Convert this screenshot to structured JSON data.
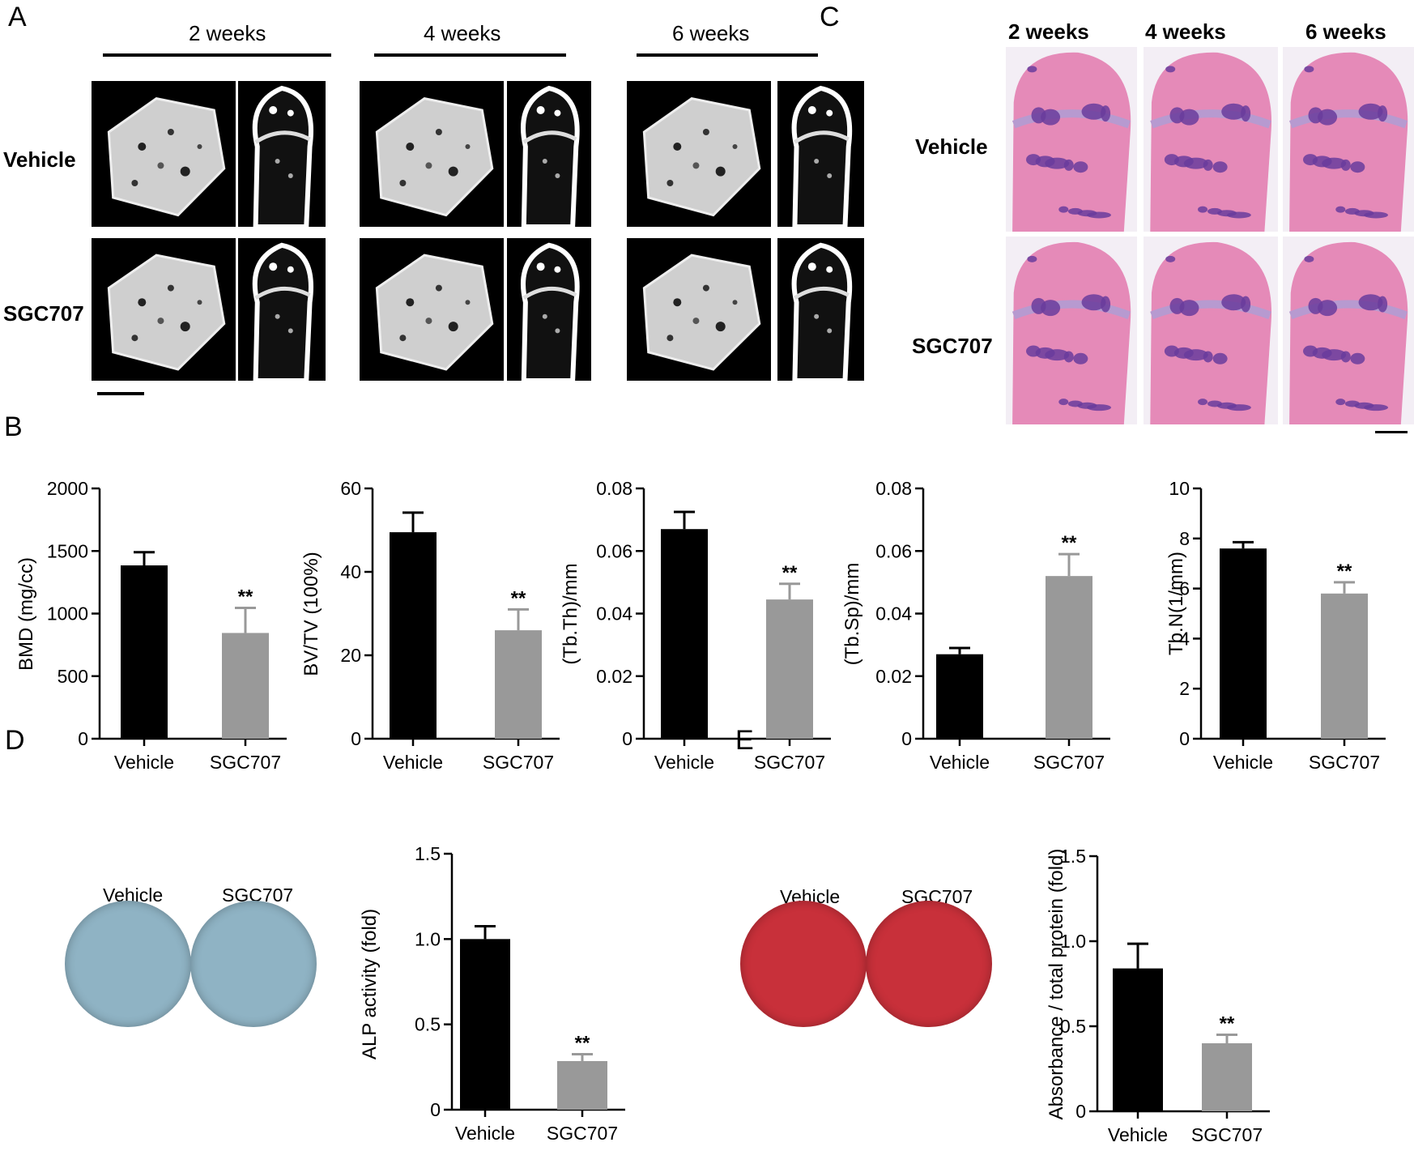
{
  "panels": {
    "A": {
      "letter": "A",
      "timepoints": [
        "2 weeks",
        "4 weeks",
        "6 weeks"
      ],
      "rows": [
        "Vehicle",
        "SGC707"
      ]
    },
    "C": {
      "letter": "C",
      "timepoints": [
        "2 weeks",
        "4 weeks",
        "6 weeks"
      ],
      "rows": [
        "Vehicle",
        "SGC707"
      ]
    },
    "B": {
      "letter": "B"
    },
    "D": {
      "letter": "D",
      "plate_labels": [
        "Vehicle",
        "SGC707"
      ]
    },
    "E": {
      "letter": "E",
      "plate_labels": [
        "Vehicle",
        "SGC707"
      ]
    }
  },
  "colors": {
    "vehicle_bar": "#000000",
    "sgc707_bar": "#999999",
    "alp_stain": "#8fb3c4",
    "ars_stain": "#c8303a",
    "he_pink": "#e58ab8",
    "he_purple": "#6a3c9c"
  },
  "chart_data": [
    {
      "type": "bar",
      "ylabel": "BMD (mg/cc)",
      "categories": [
        "Vehicle",
        "SGC707"
      ],
      "values": [
        1385,
        845
      ],
      "errors": [
        105,
        200
      ],
      "ylim": [
        0,
        2000
      ],
      "yticks": [
        "0",
        "500",
        "1000",
        "1500",
        "2000"
      ],
      "significance": [
        "",
        "**"
      ]
    },
    {
      "type": "bar",
      "ylabel": "BV/TV (100%)",
      "categories": [
        "Vehicle",
        "SGC707"
      ],
      "values": [
        49.5,
        26
      ],
      "errors": [
        4.7,
        5
      ],
      "ylim": [
        0,
        60
      ],
      "yticks": [
        "0",
        "20",
        "40",
        "60"
      ],
      "significance": [
        "",
        "**"
      ]
    },
    {
      "type": "bar",
      "ylabel": "(Tb.Th)/mm",
      "categories": [
        "Vehicle",
        "SGC707"
      ],
      "values": [
        0.067,
        0.0445
      ],
      "errors": [
        0.0055,
        0.005
      ],
      "ylim": [
        0,
        0.08
      ],
      "yticks": [
        "0",
        "0.02",
        "0.04",
        "0.06",
        "0.08"
      ],
      "significance": [
        "",
        "**"
      ]
    },
    {
      "type": "bar",
      "ylabel": "(Tb.Sp)/mm",
      "categories": [
        "Vehicle",
        "SGC707"
      ],
      "values": [
        0.027,
        0.052
      ],
      "errors": [
        0.002,
        0.007
      ],
      "ylim": [
        0,
        0.08
      ],
      "yticks": [
        "0",
        "0.02",
        "0.04",
        "0.06",
        "0.08"
      ],
      "significance": [
        "",
        "**"
      ]
    },
    {
      "type": "bar",
      "ylabel": "Tb.N(1/mm)",
      "categories": [
        "Vehicle",
        "SGC707"
      ],
      "values": [
        7.6,
        5.8
      ],
      "errors": [
        0.25,
        0.45
      ],
      "ylim": [
        0,
        10
      ],
      "yticks": [
        "0",
        "2",
        "4",
        "6",
        "8",
        "10"
      ],
      "significance": [
        "",
        "**"
      ]
    },
    {
      "type": "bar",
      "ylabel": "ALP activity (fold)",
      "categories": [
        "Vehicle",
        "SGC707"
      ],
      "values": [
        1.0,
        0.285
      ],
      "errors": [
        0.075,
        0.04
      ],
      "ylim": [
        0,
        1.5
      ],
      "yticks": [
        "0",
        "0.5",
        "1.0",
        "1.5"
      ],
      "significance": [
        "",
        "**"
      ]
    },
    {
      "type": "bar",
      "ylabel": "Absorbance / total protein (fold)",
      "categories": [
        "Vehicle",
        "SGC707"
      ],
      "values": [
        0.84,
        0.4
      ],
      "errors": [
        0.145,
        0.05
      ],
      "ylim": [
        0,
        1.5
      ],
      "yticks": [
        "0",
        "0.5",
        "1.0",
        "1.5"
      ],
      "significance": [
        "",
        "**"
      ]
    }
  ]
}
